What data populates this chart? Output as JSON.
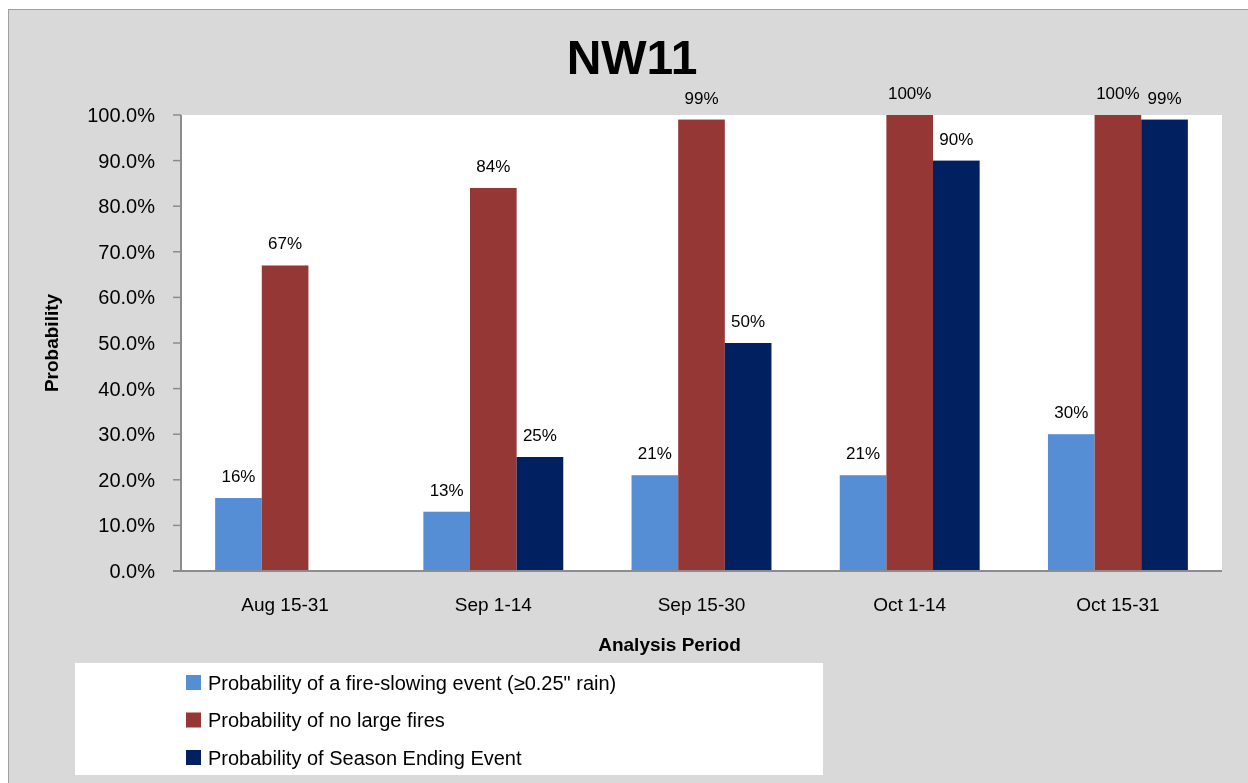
{
  "chart_data": {
    "type": "bar",
    "title": "NW11",
    "xlabel": "Analysis Period",
    "ylabel": "Probability",
    "categories": [
      "Aug 15-31",
      "Sep 1-14",
      "Sep 15-30",
      "Oct 1-14",
      "Oct 15-31"
    ],
    "series": [
      {
        "name": "Probability of a fire-slowing event (≥0.25\" rain)",
        "color": "#558ed5",
        "values": [
          16,
          13,
          21,
          21,
          30
        ],
        "value_labels": [
          "16%",
          "13%",
          "21%",
          "21%",
          "30%"
        ]
      },
      {
        "name": "Probability of no large fires",
        "color": "#953735",
        "values": [
          67,
          84,
          99,
          100,
          100
        ],
        "value_labels": [
          "67%",
          "84%",
          "99%",
          "100%",
          "100%"
        ]
      },
      {
        "name": "Probability of Season Ending Event",
        "color": "#002060",
        "values": [
          null,
          25,
          50,
          90,
          99
        ],
        "value_labels": [
          null,
          "25%",
          "50%",
          "90%",
          "99%"
        ]
      }
    ],
    "ylim": [
      0,
      100
    ],
    "yticks": [
      {
        "value": 0,
        "label": "0.0%"
      },
      {
        "value": 10,
        "label": "10.0%"
      },
      {
        "value": 20,
        "label": "20.0%"
      },
      {
        "value": 30,
        "label": "30.0%"
      },
      {
        "value": 40,
        "label": "40.0%"
      },
      {
        "value": 50,
        "label": "50.0%"
      },
      {
        "value": 60,
        "label": "60.0%"
      },
      {
        "value": 70,
        "label": "70.0%"
      },
      {
        "value": 80,
        "label": "80.0%"
      },
      {
        "value": 90,
        "label": "90.0%"
      },
      {
        "value": 100,
        "label": "100.0%"
      }
    ],
    "legend": "bottom"
  }
}
